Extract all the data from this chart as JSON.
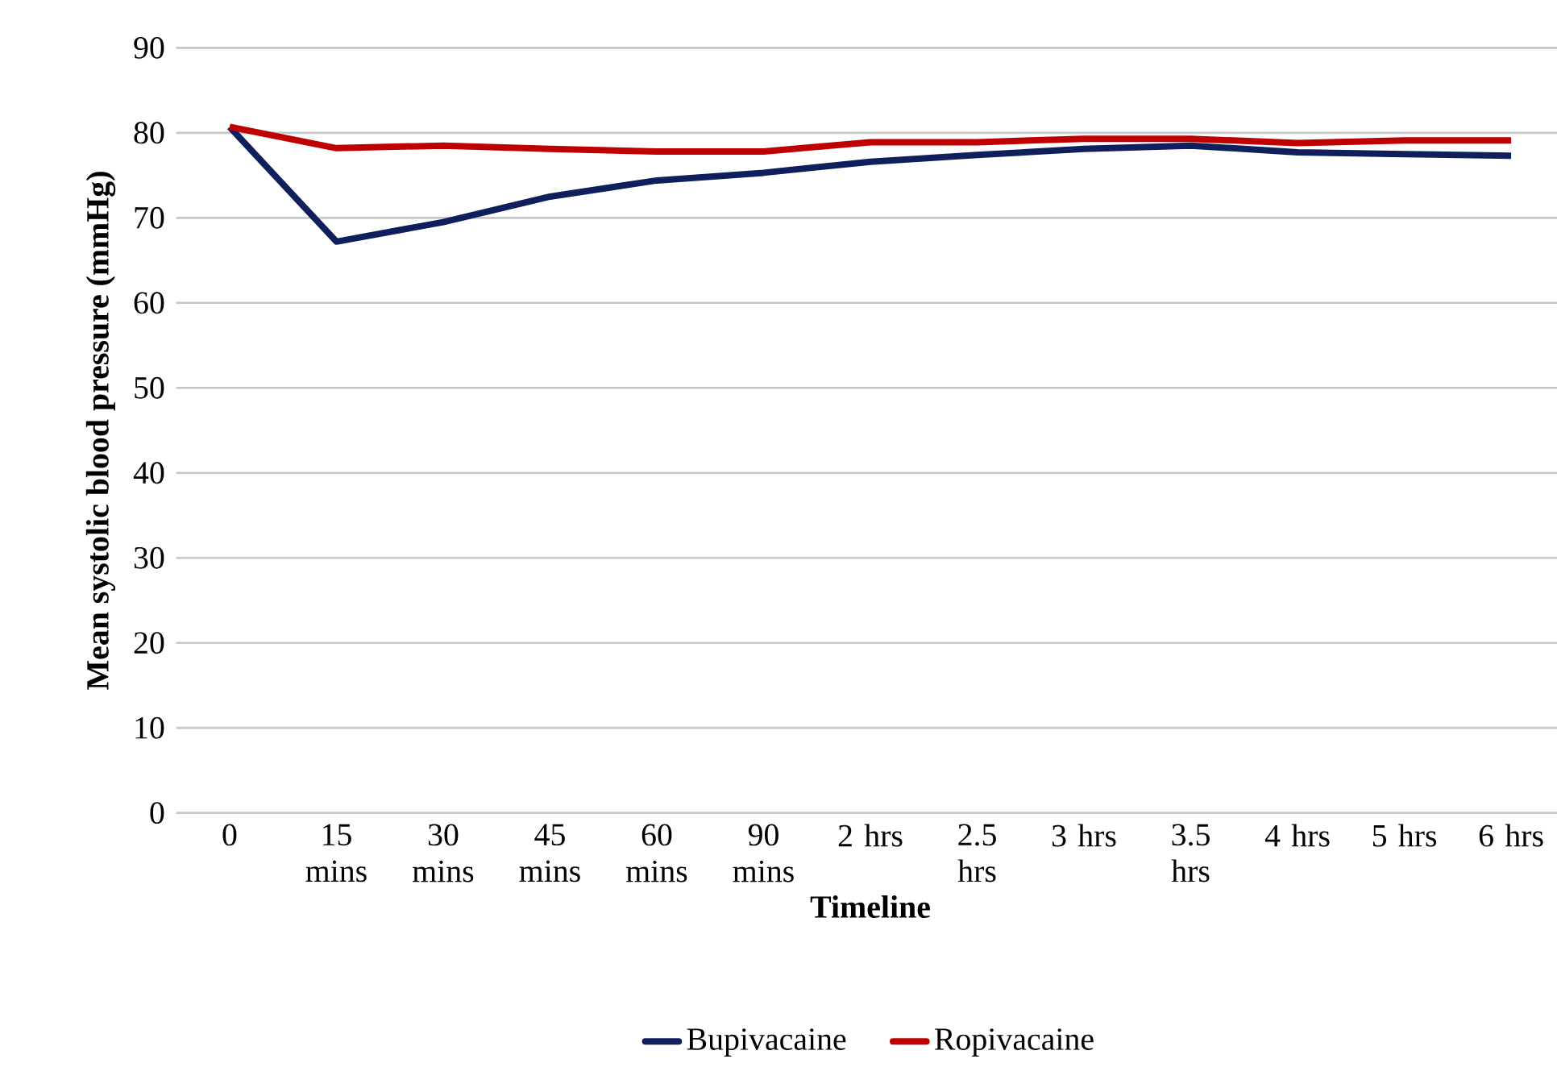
{
  "chart_data": {
    "type": "line",
    "xlabel": "Timeline",
    "ylabel": "Mean systolic blood pressure  (mmHg)",
    "categories": [
      "0",
      "15 mins",
      "30 mins",
      "45 mins",
      "60 mins",
      "90 mins",
      "2 hrs",
      "2.5 hrs",
      "3 hrs",
      "3.5 hrs",
      "4 hrs",
      "5 hrs",
      "6 hrs"
    ],
    "series": [
      {
        "name": "Bupivacaine",
        "color": "#0f1f5c",
        "values": [
          80.7,
          67.2,
          69.5,
          72.5,
          74.4,
          75.3,
          76.6,
          77.4,
          78.1,
          78.5,
          77.7,
          77.5,
          77.3
        ]
      },
      {
        "name": "Ropivacaine",
        "color": "#c00000",
        "values": [
          80.7,
          78.2,
          78.5,
          78.1,
          77.8,
          77.8,
          78.9,
          78.9,
          79.3,
          79.3,
          78.8,
          79.1,
          79.1
        ]
      }
    ],
    "ylim": [
      0,
      90
    ],
    "yticks": [
      0,
      10,
      20,
      30,
      40,
      50,
      60,
      70,
      80,
      90
    ],
    "grid": "y",
    "legend": "bottom",
    "marker": "none",
    "line_style": "solid"
  }
}
